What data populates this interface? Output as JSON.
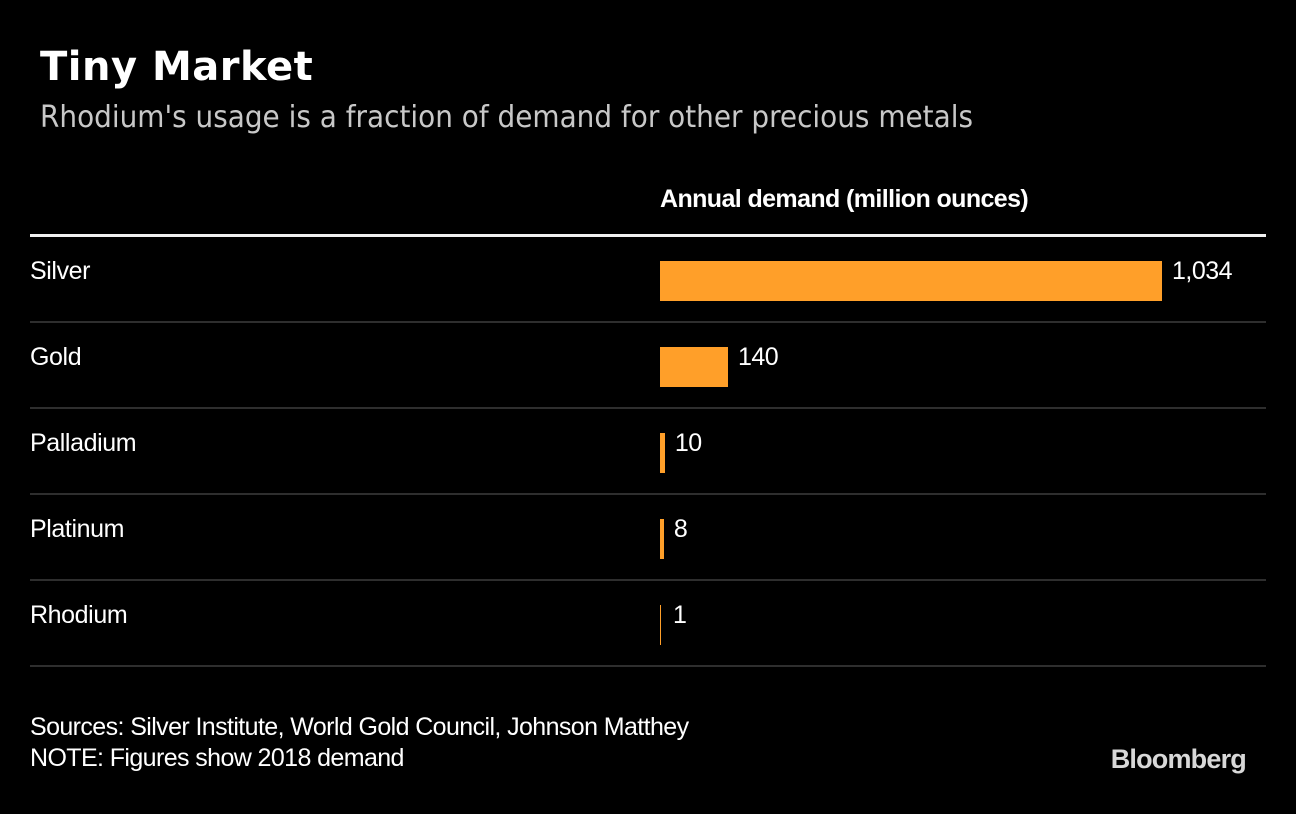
{
  "header": {
    "title": "Tiny Market",
    "subtitle": "Rhodium's usage is a fraction of demand for other precious metals"
  },
  "footer": {
    "sources": "Sources: Silver Institute, World Gold Council, Johnson Matthey",
    "note": "NOTE: Figures show 2018 demand",
    "brand": "Bloomberg"
  },
  "colors": {
    "bar": "#ff9f29",
    "background": "#000000"
  },
  "chart_data": {
    "type": "bar",
    "orientation": "horizontal",
    "title": "Tiny Market",
    "subtitle": "Rhodium's usage is a fraction of demand for other precious metals",
    "column_header": "Annual demand (million ounces)",
    "xlabel": "Annual demand (million ounces)",
    "ylabel": "",
    "categories": [
      "Silver",
      "Gold",
      "Palladium",
      "Platinum",
      "Rhodium"
    ],
    "values": [
      1034,
      140,
      10,
      8,
      1
    ],
    "value_labels": [
      "1,034",
      "140",
      "10",
      "8",
      "1"
    ],
    "xlim": [
      0,
      1034
    ],
    "grid": false,
    "legend": "none"
  }
}
